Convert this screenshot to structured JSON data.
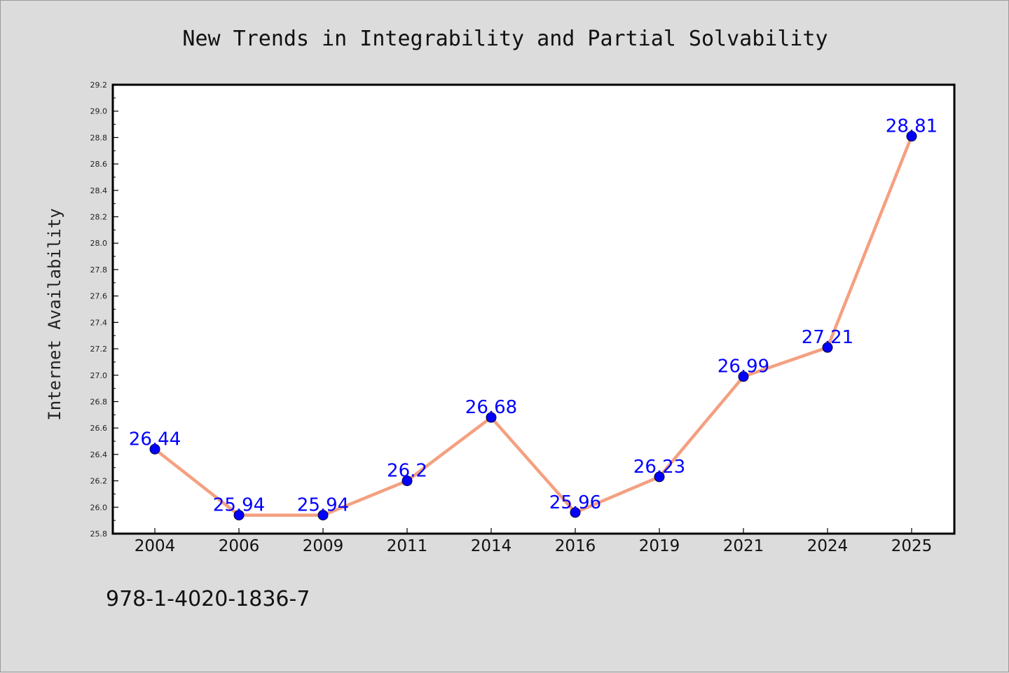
{
  "chart_data": {
    "type": "line",
    "title": "New Trends in Integrability and Partial Solvability",
    "xlabel": "",
    "ylabel": "Internet Availability",
    "categories": [
      "2004",
      "2006",
      "2009",
      "2011",
      "2014",
      "2016",
      "2019",
      "2021",
      "2024",
      "2025"
    ],
    "series": [
      {
        "values": [
          26.44,
          25.94,
          25.94,
          26.2,
          26.68,
          25.96,
          26.23,
          26.99,
          27.21,
          28.81
        ],
        "data_labels": [
          "26.44",
          "25.94",
          "25.94",
          "26.2",
          "26.68",
          "25.96",
          "26.23",
          "26.99",
          "27.21",
          "28.81"
        ],
        "line_color": "#f4a080",
        "marker_color": "#0000ff"
      }
    ],
    "ylim": [
      25.8,
      29.2
    ],
    "yticks": [
      "25.8",
      "26.0",
      "26.2",
      "26.4",
      "26.6",
      "26.8",
      "27.0",
      "27.2",
      "27.4",
      "27.6",
      "27.8",
      "28.0",
      "28.2",
      "28.4",
      "28.6",
      "28.8",
      "29.0",
      "29.2"
    ],
    "grid": false,
    "legend": "none",
    "background": "#dcdcdc",
    "plot_background": "#ffffff"
  },
  "footer": {
    "isbn": "978-1-4020-1836-7"
  }
}
